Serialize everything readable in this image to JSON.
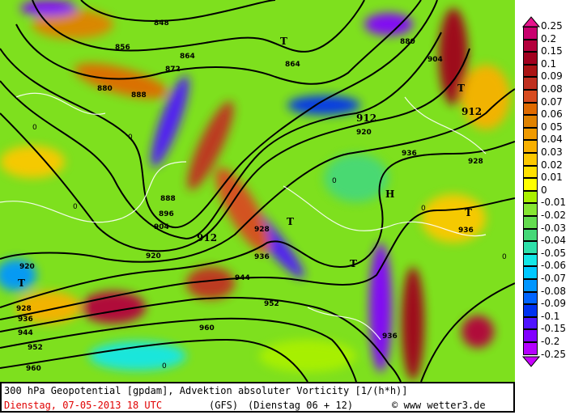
{
  "caption": {
    "title": "300 hPa Geopotential [gpdam], Advektion absoluter Vorticity [1/(h*h)]",
    "date": "Dienstag, 07-05-2013  18 UTC",
    "model": "(GFS)",
    "forecast": "(Dienstag 06 + 12)",
    "credit": "© www wetter3.de"
  },
  "legend": {
    "labels": [
      "0.25",
      "0.2",
      "0.15",
      "0.1",
      "0.09",
      "0.08",
      "0.07",
      "0.06",
      "0 05",
      "0.04",
      "0.03",
      "0.02",
      "0.01",
      "0",
      "-0.01",
      "-0.02",
      "-0.03",
      "-0.04",
      "-0.05",
      "-0.06",
      "-0.07",
      "-0.08",
      "-0.09",
      "-0.1",
      "-0.15",
      "-0.2",
      "-0.25"
    ],
    "colors": [
      "#c8006e",
      "#b4003c",
      "#a0001e",
      "#aa1414",
      "#c03020",
      "#d84c20",
      "#e06a00",
      "#e08200",
      "#f09a00",
      "#f8b000",
      "#fcc800",
      "#ffe000",
      "#ffff00",
      "#aaf000",
      "#86e632",
      "#64dc50",
      "#46d878",
      "#2ee0aa",
      "#14e6e6",
      "#00c8ff",
      "#0096ff",
      "#0064ff",
      "#0032f0",
      "#5014ff",
      "#8200ff",
      "#b400ff"
    ],
    "top_color": "#e6148c",
    "bottom_color": "#c800ff"
  },
  "map": {
    "contour_labels": [
      "848",
      "856",
      "864",
      "872",
      "880",
      "888",
      "896",
      "904",
      "912",
      "920",
      "928",
      "936",
      "944",
      "952",
      "960"
    ],
    "zero_label": "0",
    "high": "H",
    "low": "T"
  }
}
